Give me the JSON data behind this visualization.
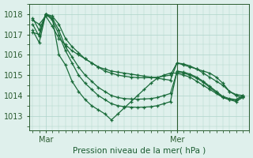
{
  "bg_color": "#dff0ec",
  "grid_color": "#aed4ca",
  "line_color": "#1a6b3a",
  "marker_color": "#1a6b3a",
  "xlabel": "Pression niveau de la mer( hPa )",
  "xlabel_color": "#1a5c30",
  "tick_color": "#2a5c30",
  "axis_color": "#2a5c30",
  "yticks": [
    1013,
    1014,
    1015,
    1016,
    1017,
    1018
  ],
  "ylim": [
    1012.3,
    1018.5
  ],
  "xtick_labels": [
    "Mar",
    "Mer"
  ],
  "xtick_positions": [
    2,
    22
  ],
  "xlim": [
    -0.5,
    33
  ],
  "vline_x": 22,
  "series": [
    [
      1017.7,
      1017.5,
      1017.9,
      1017.4,
      1016.8,
      1016.5,
      1016.2,
      1016.0,
      1015.8,
      1015.6,
      1015.4,
      1015.3,
      1015.2,
      1015.15,
      1015.1,
      1015.05,
      1015.0,
      1014.95,
      1014.9,
      1014.85,
      1014.8,
      1014.75,
      1015.6,
      1015.5,
      1015.4,
      1015.3,
      1015.2,
      1015.1,
      1014.9,
      1014.6,
      1014.2,
      1014.0,
      1013.9
    ],
    [
      1017.1,
      1017.0,
      1018.0,
      1017.8,
      1016.0,
      1015.5,
      1014.7,
      1014.2,
      1013.8,
      1013.5,
      1013.3,
      1013.1,
      1012.8,
      1013.1,
      1013.4,
      1013.7,
      1014.0,
      1014.3,
      1014.6,
      1014.85,
      1015.0,
      1015.1,
      1015.1,
      1015.0,
      1014.9,
      1014.7,
      1014.5,
      1014.3,
      1014.1,
      1013.9,
      1013.8,
      1013.7,
      1013.9
    ],
    [
      1017.8,
      1017.2,
      1018.0,
      1017.9,
      1017.5,
      1016.8,
      1016.4,
      1016.1,
      1015.8,
      1015.6,
      1015.4,
      1015.2,
      1015.1,
      1015.0,
      1014.95,
      1014.9,
      1014.88,
      1014.87,
      1014.88,
      1014.9,
      1014.95,
      1015.0,
      1015.6,
      1015.55,
      1015.45,
      1015.3,
      1015.1,
      1014.9,
      1014.7,
      1014.5,
      1014.2,
      1014.05,
      1014.0
    ],
    [
      1017.5,
      1016.9,
      1018.0,
      1017.8,
      1017.2,
      1016.4,
      1015.9,
      1015.4,
      1015.0,
      1014.7,
      1014.4,
      1014.2,
      1014.0,
      1013.9,
      1013.85,
      1013.83,
      1013.82,
      1013.83,
      1013.85,
      1013.9,
      1014.0,
      1014.1,
      1015.15,
      1015.1,
      1015.0,
      1014.85,
      1014.65,
      1014.4,
      1014.15,
      1013.9,
      1013.8,
      1013.75,
      1013.95
    ],
    [
      1017.2,
      1016.6,
      1018.0,
      1017.7,
      1017.0,
      1016.2,
      1015.6,
      1015.0,
      1014.6,
      1014.3,
      1014.0,
      1013.8,
      1013.6,
      1013.5,
      1013.45,
      1013.43,
      1013.42,
      1013.43,
      1013.45,
      1013.5,
      1013.6,
      1013.7,
      1015.2,
      1015.15,
      1015.05,
      1014.9,
      1014.7,
      1014.45,
      1014.2,
      1013.95,
      1013.85,
      1013.8,
      1014.0
    ]
  ]
}
